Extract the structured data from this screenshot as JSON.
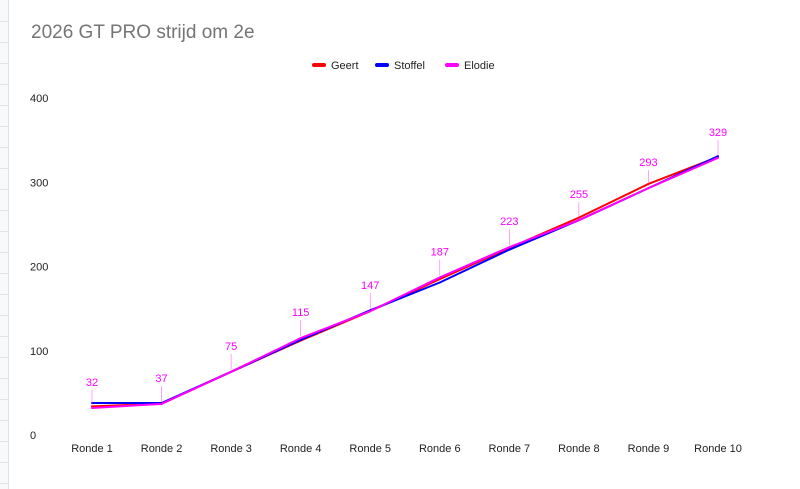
{
  "chart_data": {
    "type": "line",
    "title": "2026 GT PRO strijd om 2e",
    "xlabel": "",
    "ylabel": "",
    "categories": [
      "Ronde 1",
      "Ronde 2",
      "Ronde 3",
      "Ronde 4",
      "Ronde 5",
      "Ronde 6",
      "Ronde 7",
      "Ronde 8",
      "Ronde 9",
      "Ronde 10"
    ],
    "ylim": [
      0,
      400
    ],
    "yticks": [
      0,
      100,
      200,
      300,
      400
    ],
    "grid": false,
    "legend_position": "top",
    "series": [
      {
        "name": "Geert",
        "color": "#ff0000",
        "values": [
          34,
          37,
          75,
          112,
          147,
          185,
          222,
          258,
          298,
          330
        ]
      },
      {
        "name": "Stoffel",
        "color": "#0000ff",
        "values": [
          38,
          38,
          75,
          113,
          148,
          181,
          220,
          255,
          293,
          331
        ]
      },
      {
        "name": "Elodie",
        "color": "#ff00ff",
        "values": [
          32,
          37,
          75,
          115,
          147,
          187,
          223,
          255,
          293,
          329
        ]
      }
    ],
    "data_labels": {
      "series": "Elodie",
      "color": "#ff00ff"
    }
  }
}
